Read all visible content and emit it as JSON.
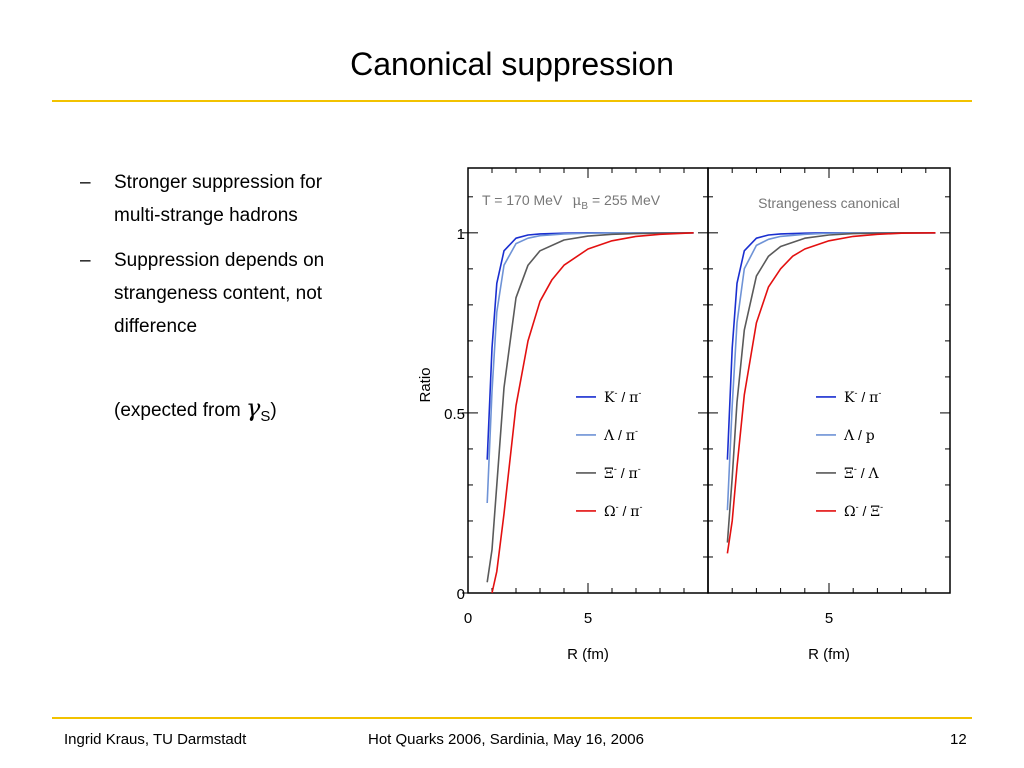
{
  "slide": {
    "title": "Canonical suppression",
    "bullets": [
      {
        "dash": "–",
        "lines": [
          "Stronger suppression for",
          "multi-strange hadrons"
        ]
      },
      {
        "dash": "–",
        "lines": [
          "Suppression depends on",
          "strangeness content, not",
          "difference"
        ]
      }
    ],
    "note": {
      "prefix": "(expected from ",
      "symbol": "γ",
      "sub": "S",
      "suffix": ")"
    }
  },
  "footer": {
    "author": "Ingrid Kraus, TU Darmstadt",
    "event": "Hot Quarks 2006, Sardinia, May 16, 2006",
    "page": "12"
  },
  "colors": {
    "accent_rule": "#f2c200",
    "kaon": "#1a2fd0",
    "lambda": "#6f93d6",
    "xi": "#5a5a5a",
    "omega": "#e31010",
    "annotation": "#777777"
  },
  "chart_data": [
    {
      "type": "line",
      "panel": "left",
      "annotation": {
        "T": "T = 170 MeV",
        "mu": "μ",
        "mu_sub": "B",
        "mu_value": " = 255 MeV"
      },
      "xlabel": "R (fm)",
      "ylabel": "Ratio",
      "xlim": [
        0,
        10
      ],
      "ylim": [
        0,
        1.18
      ],
      "xticks": [
        "0",
        "5"
      ],
      "yticks": [
        "0",
        "0.5",
        "1"
      ],
      "legend_position": "center-right",
      "series": [
        {
          "name": "K⁻ / π⁻",
          "label_main": "K",
          "label_sup1": "-",
          "label_sep": " / ",
          "label_main2": "π",
          "label_sup2": "-",
          "color_key": "kaon",
          "x": [
            0.8,
            1.0,
            1.2,
            1.5,
            2.0,
            2.5,
            3.0,
            4.0,
            5.0,
            6.0,
            7.0,
            8.0,
            9.4
          ],
          "y": [
            0.37,
            0.68,
            0.86,
            0.95,
            0.985,
            0.994,
            0.997,
            0.999,
            1.0,
            1.0,
            1.0,
            1.0,
            1.0
          ]
        },
        {
          "name": "Λ / π⁻",
          "label_main": "Λ",
          "label_sup1": "",
          "label_sep": " / ",
          "label_main2": "π",
          "label_sup2": "-",
          "color_key": "lambda",
          "x": [
            0.8,
            1.0,
            1.2,
            1.5,
            2.0,
            2.5,
            3.0,
            4.0,
            5.0,
            6.0,
            7.0,
            8.0,
            9.4
          ],
          "y": [
            0.25,
            0.56,
            0.78,
            0.91,
            0.97,
            0.985,
            0.992,
            0.997,
            0.999,
            1.0,
            1.0,
            1.0,
            1.0
          ]
        },
        {
          "name": "Ξ⁻ / π⁻",
          "label_main": "Ξ",
          "label_sup1": "-",
          "label_sep": " / ",
          "label_main2": "π",
          "label_sup2": "-",
          "color_key": "xi",
          "x": [
            0.8,
            1.0,
            1.2,
            1.5,
            2.0,
            2.5,
            3.0,
            4.0,
            5.0,
            6.0,
            7.0,
            8.0,
            9.4
          ],
          "y": [
            0.03,
            0.12,
            0.3,
            0.57,
            0.82,
            0.91,
            0.95,
            0.98,
            0.991,
            0.996,
            0.998,
            0.999,
            1.0
          ]
        },
        {
          "name": "Ω⁻ / π⁻",
          "label_main": "Ω",
          "label_sup1": "-",
          "label_sep": " / ",
          "label_main2": "π",
          "label_sup2": "-",
          "color_key": "omega",
          "x": [
            1.0,
            1.2,
            1.5,
            2.0,
            2.5,
            3.0,
            3.5,
            4.0,
            5.0,
            6.0,
            7.0,
            8.0,
            9.4
          ],
          "y": [
            0.0,
            0.06,
            0.22,
            0.52,
            0.7,
            0.81,
            0.87,
            0.91,
            0.955,
            0.978,
            0.99,
            0.996,
            1.0
          ]
        }
      ]
    },
    {
      "type": "line",
      "panel": "right",
      "annotation": {
        "T": "Strangeness canonical"
      },
      "xlabel": "R (fm)",
      "ylabel": "",
      "xlim": [
        0,
        10
      ],
      "ylim": [
        0,
        1.18
      ],
      "xticks": [
        "5"
      ],
      "legend_position": "center-right",
      "series": [
        {
          "name": "K⁻ / π⁻",
          "label_main": "K",
          "label_sup1": "-",
          "label_sep": " / ",
          "label_main2": "π",
          "label_sup2": "-",
          "color_key": "kaon",
          "x": [
            0.8,
            1.0,
            1.2,
            1.5,
            2.0,
            2.5,
            3.0,
            4.0,
            5.0,
            6.0,
            7.0,
            8.0,
            9.4
          ],
          "y": [
            0.37,
            0.68,
            0.86,
            0.95,
            0.985,
            0.994,
            0.997,
            0.999,
            1.0,
            1.0,
            1.0,
            1.0,
            1.0
          ]
        },
        {
          "name": "Λ / p",
          "label_main": "Λ",
          "label_sup1": "",
          "label_sep": " / ",
          "label_main2": "p",
          "label_sup2": "",
          "color_key": "lambda",
          "x": [
            0.8,
            1.0,
            1.2,
            1.5,
            2.0,
            2.5,
            3.0,
            4.0,
            5.0,
            6.0,
            7.0,
            8.0,
            9.4
          ],
          "y": [
            0.23,
            0.52,
            0.75,
            0.9,
            0.965,
            0.982,
            0.99,
            0.996,
            0.999,
            1.0,
            1.0,
            1.0,
            1.0
          ]
        },
        {
          "name": "Ξ⁻ / Λ",
          "label_main": "Ξ",
          "label_sup1": "-",
          "label_sep": " / ",
          "label_main2": "Λ",
          "label_sup2": "",
          "color_key": "xi",
          "x": [
            0.8,
            1.0,
            1.2,
            1.5,
            2.0,
            2.5,
            3.0,
            4.0,
            5.0,
            6.0,
            7.0,
            8.0,
            9.4
          ],
          "y": [
            0.14,
            0.32,
            0.53,
            0.73,
            0.88,
            0.935,
            0.962,
            0.985,
            0.994,
            0.998,
            0.999,
            1.0,
            1.0
          ]
        },
        {
          "name": "Ω⁻ / Ξ⁻",
          "label_main": "Ω",
          "label_sup1": "-",
          "label_sep": " / ",
          "label_main2": "Ξ",
          "label_sup2": "-",
          "color_key": "omega",
          "x": [
            0.8,
            1.0,
            1.2,
            1.5,
            2.0,
            2.5,
            3.0,
            3.5,
            4.0,
            5.0,
            6.0,
            7.0,
            8.0,
            9.4
          ],
          "y": [
            0.11,
            0.2,
            0.35,
            0.55,
            0.75,
            0.85,
            0.9,
            0.935,
            0.955,
            0.978,
            0.99,
            0.996,
            0.999,
            1.0
          ]
        }
      ]
    }
  ]
}
